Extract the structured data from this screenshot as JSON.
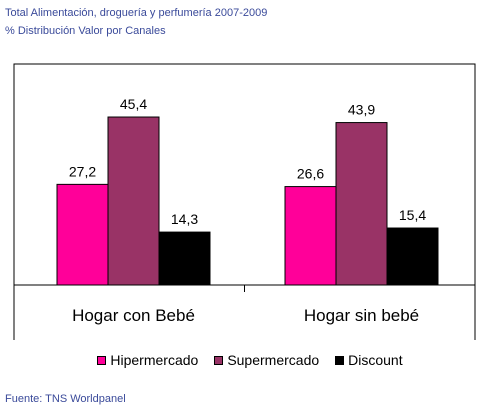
{
  "chart_data": {
    "type": "bar",
    "title": "Total Alimentación, droguería y perfumería 2007-2009",
    "subtitle": "% Distribución Valor por Canales",
    "categories": [
      "Hogar con Bebé",
      "Hogar sin bebé"
    ],
    "series": [
      {
        "name": "Hipermercado",
        "values": [
          27.2,
          26.6
        ],
        "color": "#ff0099"
      },
      {
        "name": "Supermercado",
        "values": [
          45.4,
          43.9
        ],
        "color": "#993366"
      },
      {
        "name": "Discount",
        "values": [
          14.3,
          15.4
        ],
        "color": "#000000"
      }
    ],
    "data_labels": [
      [
        "27,2",
        "45,4",
        "14,3"
      ],
      [
        "26,6",
        "43,9",
        "15,4"
      ]
    ],
    "ylim": [
      0,
      50
    ],
    "grid": false,
    "legend_position": "bottom",
    "source": "Fuente: TNS Worldpanel"
  }
}
